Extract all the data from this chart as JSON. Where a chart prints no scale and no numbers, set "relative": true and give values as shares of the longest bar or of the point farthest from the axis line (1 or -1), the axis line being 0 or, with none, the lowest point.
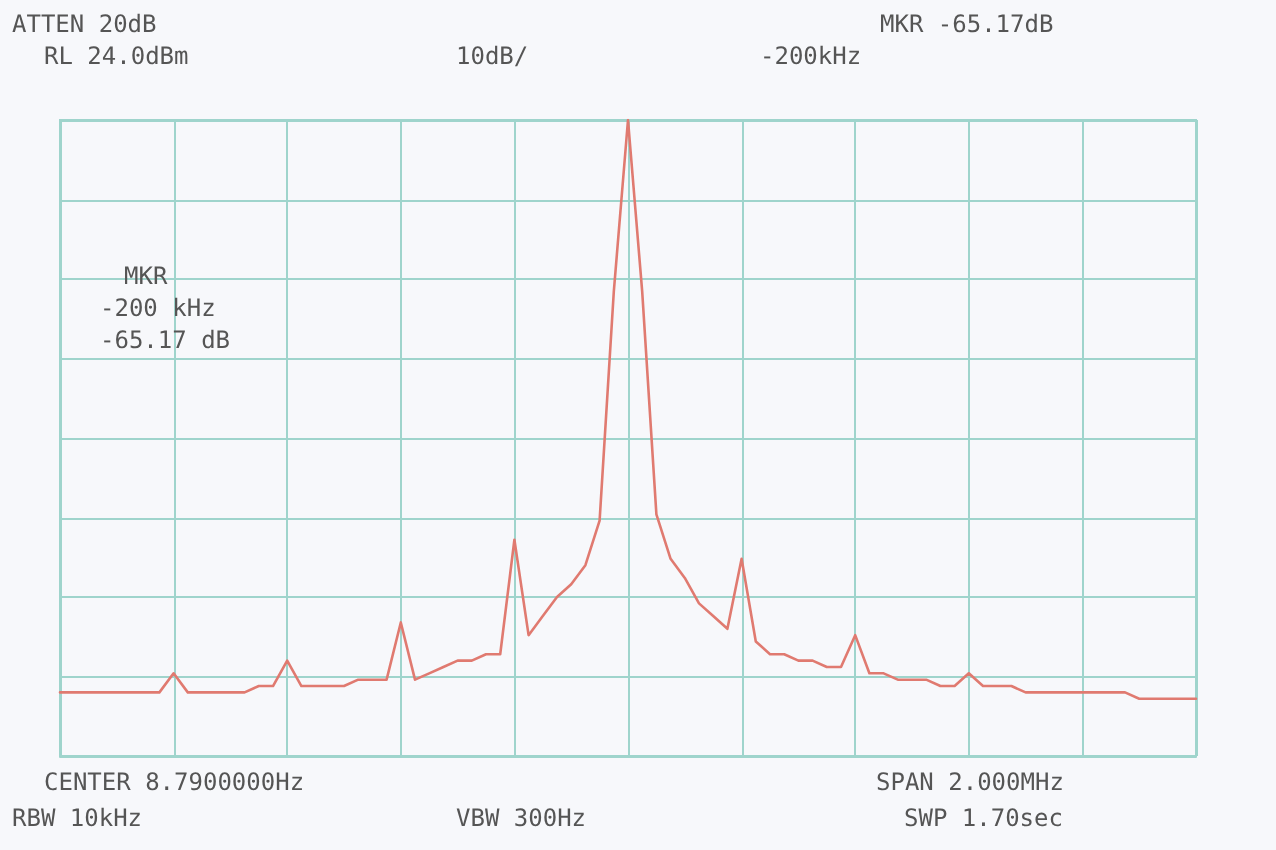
{
  "chart_data": {
    "type": "line",
    "relative": true,
    "grid": true,
    "line_style": "solid",
    "annotations": [
      "ATTEN 20dB",
      "RL 24.0dBm",
      "10dB/",
      "MKR -65.17dB",
      "-200kHz",
      "MKR",
      "-200 kHz",
      "-65.17 dB",
      "CENTER 8.7900000Hz",
      "SPAN 2.000MHz",
      "RBW 10kHz",
      "VBW 300Hz",
      "SWP 1.70sec"
    ],
    "categories": [
      null,
      null,
      null,
      null,
      null,
      null,
      null,
      null,
      null,
      null,
      null,
      null,
      null,
      null,
      null,
      null,
      null,
      null,
      null,
      null,
      null,
      null,
      null,
      null,
      null,
      null,
      null,
      null,
      null,
      null,
      null,
      null,
      null,
      null,
      null,
      null,
      null,
      null,
      null,
      null,
      null,
      null,
      null,
      null,
      null,
      null,
      null,
      null,
      null,
      null,
      null,
      null,
      null,
      null,
      null,
      null,
      null,
      null,
      null,
      null,
      null,
      null,
      null,
      null,
      null,
      null,
      null,
      null,
      null,
      null,
      null,
      null,
      null,
      null,
      null,
      null,
      null,
      null,
      null,
      null,
      null
    ],
    "series": [
      {
        "color": "#e07a70",
        "values": [
          0.1,
          0.1,
          0.1,
          0.1,
          0.1,
          0.1,
          0.1,
          0.1,
          0.13,
          0.1,
          0.1,
          0.1,
          0.1,
          0.1,
          0.11,
          0.11,
          0.15,
          0.11,
          0.11,
          0.11,
          0.11,
          0.12,
          0.12,
          0.12,
          0.21,
          0.12,
          0.13,
          0.14,
          0.15,
          0.15,
          0.16,
          0.16,
          0.34,
          0.19,
          0.22,
          0.25,
          0.27,
          0.3,
          0.37,
          0.73,
          1,
          0.73,
          0.38,
          0.31,
          0.28,
          0.24,
          0.22,
          0.2,
          0.31,
          0.18,
          0.16,
          0.16,
          0.15,
          0.15,
          0.14,
          0.14,
          0.19,
          0.13,
          0.13,
          0.12,
          0.12,
          0.12,
          0.11,
          0.11,
          0.13,
          0.11,
          0.11,
          0.11,
          0.1,
          0.1,
          0.1,
          0.1,
          0.1,
          0.1,
          0.1,
          0.1,
          0.09,
          0.09,
          0.09,
          0.09,
          0.09
        ]
      }
    ]
  }
}
